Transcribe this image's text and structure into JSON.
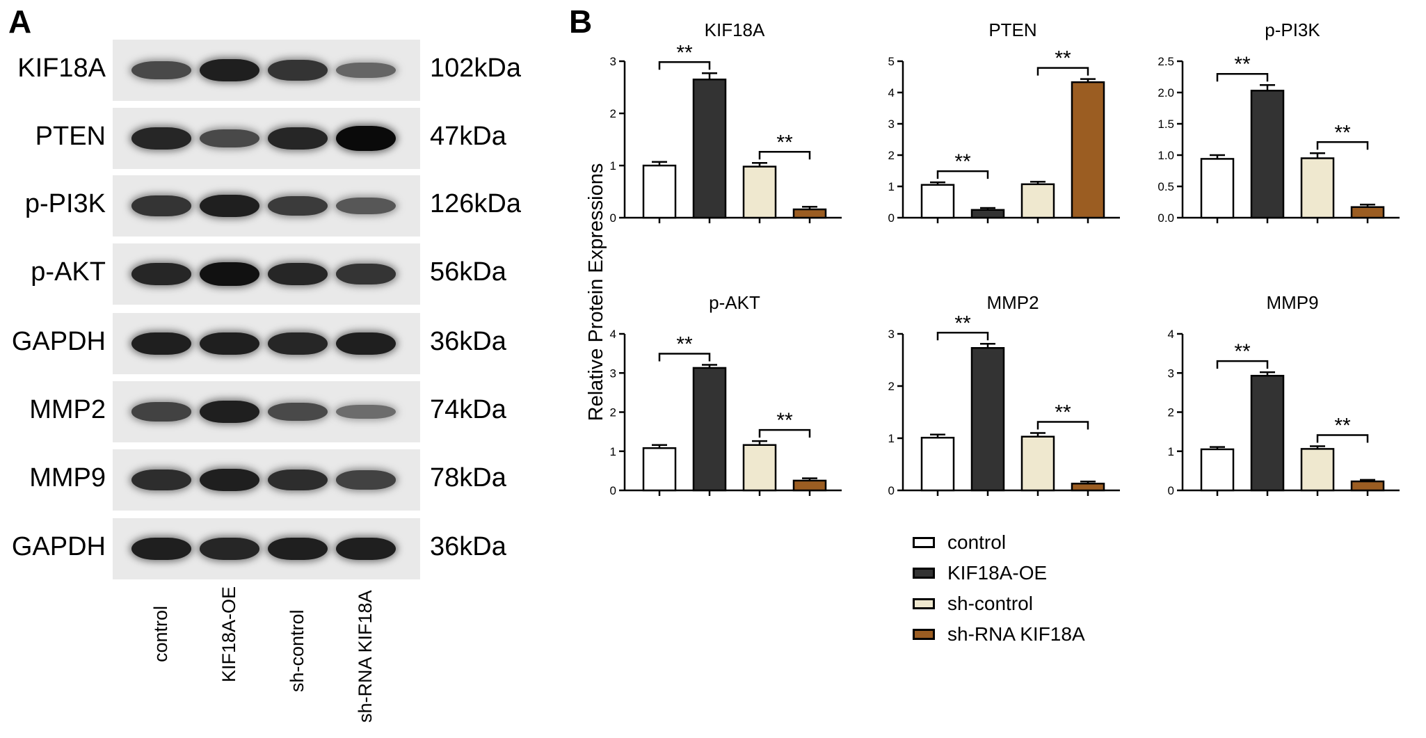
{
  "panel_a": {
    "letter": "A",
    "blots": [
      {
        "label": "KIF18A",
        "size": "102kDa",
        "intensity": [
          0.55,
          0.85,
          0.7,
          0.35
        ]
      },
      {
        "label": "PTEN",
        "size": "47kDa",
        "intensity": [
          0.8,
          0.55,
          0.8,
          1.0
        ]
      },
      {
        "label": "p-PI3K",
        "size": "126kDa",
        "intensity": [
          0.7,
          0.85,
          0.65,
          0.45
        ]
      },
      {
        "label": "p-AKT",
        "size": "56kDa",
        "intensity": [
          0.8,
          0.95,
          0.8,
          0.7
        ]
      },
      {
        "label": "GAPDH",
        "size": "36kDa",
        "intensity": [
          0.85,
          0.85,
          0.8,
          0.85
        ]
      },
      {
        "label": "MMP2",
        "size": "74kDa",
        "intensity": [
          0.6,
          0.85,
          0.55,
          0.3
        ]
      },
      {
        "label": "MMP9",
        "size": "78kDa",
        "intensity": [
          0.75,
          0.85,
          0.75,
          0.6
        ]
      },
      {
        "label": "GAPDH",
        "size": "36kDa",
        "intensity": [
          0.85,
          0.8,
          0.85,
          0.85
        ]
      }
    ],
    "lanes": [
      "control",
      "KIF18A-OE",
      "sh-control",
      "sh-RNA KIF18A"
    ]
  },
  "panel_b": {
    "letter": "B",
    "ylabel": "Relative Protein Expressions",
    "significance": "**"
  },
  "legend": [
    {
      "label": "control",
      "color": "#ffffff"
    },
    {
      "label": "KIF18A-OE",
      "color": "#333333"
    },
    {
      "label": "sh-control",
      "color": "#efe8cf"
    },
    {
      "label": "sh-RNA KIF18A",
      "color": "#9b5d22"
    }
  ],
  "chart_data": [
    {
      "type": "bar",
      "title": "KIF18A",
      "categories": [
        "control",
        "KIF18A-OE",
        "sh-control",
        "sh-RNA KIF18A"
      ],
      "values": [
        1.0,
        2.65,
        0.98,
        0.16
      ],
      "errors": [
        0.07,
        0.12,
        0.07,
        0.05
      ],
      "ylim": [
        0,
        3
      ],
      "yticks": [
        "0",
        "1",
        "2",
        "3"
      ],
      "significance": [
        {
          "from": 0,
          "to": 1,
          "label": "**"
        },
        {
          "from": 2,
          "to": 3,
          "label": "**"
        }
      ]
    },
    {
      "type": "bar",
      "title": "PTEN",
      "categories": [
        "control",
        "KIF18A-OE",
        "sh-control",
        "sh-RNA KIF18A"
      ],
      "values": [
        1.05,
        0.25,
        1.07,
        4.33
      ],
      "errors": [
        0.08,
        0.06,
        0.08,
        0.1
      ],
      "ylim": [
        0,
        5
      ],
      "yticks": [
        "0",
        "1",
        "2",
        "3",
        "4",
        "5"
      ],
      "significance": [
        {
          "from": 0,
          "to": 1,
          "label": "**"
        },
        {
          "from": 2,
          "to": 3,
          "label": "**"
        }
      ]
    },
    {
      "type": "bar",
      "title": "p-PI3K",
      "categories": [
        "control",
        "KIF18A-OE",
        "sh-control",
        "sh-RNA KIF18A"
      ],
      "values": [
        0.94,
        2.03,
        0.95,
        0.17
      ],
      "errors": [
        0.06,
        0.09,
        0.08,
        0.04
      ],
      "ylim": [
        0,
        2.5
      ],
      "yticks": [
        "0.0",
        "0.5",
        "1.0",
        "1.5",
        "2.0",
        "2.5"
      ],
      "significance": [
        {
          "from": 0,
          "to": 1,
          "label": "**"
        },
        {
          "from": 2,
          "to": 3,
          "label": "**"
        }
      ]
    },
    {
      "type": "bar",
      "title": "p-AKT",
      "categories": [
        "control",
        "KIF18A-OE",
        "sh-control",
        "sh-RNA KIF18A"
      ],
      "values": [
        1.08,
        3.13,
        1.16,
        0.25
      ],
      "errors": [
        0.08,
        0.08,
        0.1,
        0.06
      ],
      "ylim": [
        0,
        4
      ],
      "yticks": [
        "0",
        "1",
        "2",
        "3",
        "4"
      ],
      "significance": [
        {
          "from": 0,
          "to": 1,
          "label": "**"
        },
        {
          "from": 2,
          "to": 3,
          "label": "**"
        }
      ]
    },
    {
      "type": "bar",
      "title": "MMP2",
      "categories": [
        "control",
        "KIF18A-OE",
        "sh-control",
        "sh-RNA KIF18A"
      ],
      "values": [
        1.01,
        2.73,
        1.03,
        0.13
      ],
      "errors": [
        0.06,
        0.08,
        0.07,
        0.04
      ],
      "ylim": [
        0,
        3
      ],
      "yticks": [
        "0",
        "1",
        "2",
        "3"
      ],
      "significance": [
        {
          "from": 0,
          "to": 1,
          "label": "**"
        },
        {
          "from": 2,
          "to": 3,
          "label": "**"
        }
      ]
    },
    {
      "type": "bar",
      "title": "MMP9",
      "categories": [
        "control",
        "KIF18A-OE",
        "sh-control",
        "sh-RNA KIF18A"
      ],
      "values": [
        1.05,
        2.93,
        1.06,
        0.23
      ],
      "errors": [
        0.06,
        0.09,
        0.07,
        0.04
      ],
      "ylim": [
        0,
        4
      ],
      "yticks": [
        "0",
        "1",
        "2",
        "3",
        "4"
      ],
      "significance": [
        {
          "from": 0,
          "to": 1,
          "label": "**"
        },
        {
          "from": 2,
          "to": 3,
          "label": "**"
        }
      ]
    }
  ]
}
